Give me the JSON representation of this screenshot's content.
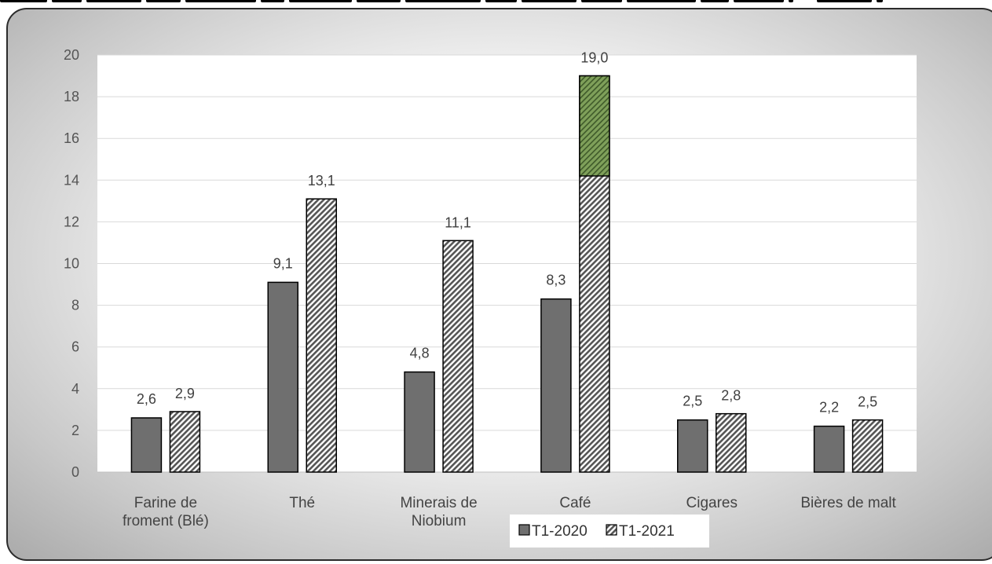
{
  "chart_data": {
    "type": "bar",
    "categories": [
      [
        "Farine de",
        "froment (Blé)"
      ],
      [
        "Thé"
      ],
      [
        "Minerais de",
        "Niobium"
      ],
      [
        "Café"
      ],
      [
        "Cigares"
      ],
      [
        "Bières de malt"
      ]
    ],
    "series": [
      {
        "name": "T1-2020",
        "values": [
          2.6,
          9.1,
          4.8,
          8.3,
          2.5,
          2.2
        ],
        "labels": [
          "2,6",
          "9,1",
          "4,8",
          "8,3",
          "2,5",
          "2,2"
        ]
      },
      {
        "name": "T1-2021",
        "values": [
          2.9,
          13.1,
          11.1,
          19.0,
          2.8,
          2.5
        ],
        "labels": [
          "2,9",
          "13,1",
          "11,1",
          "19,0",
          "2,8",
          "2,5"
        ]
      }
    ],
    "yticks": [
      "0",
      "2",
      "4",
      "6",
      "8",
      "10",
      "12",
      "14",
      "16",
      "18",
      "20"
    ],
    "ylim": [
      0,
      20
    ],
    "grid": true,
    "legend_position": "bottom",
    "colors": {
      "T1-2020": "#6f6f6f",
      "T1-2021_hatch": "#555555",
      "highlight": "#7fa05a"
    },
    "highlight_from_value": 14.2
  }
}
